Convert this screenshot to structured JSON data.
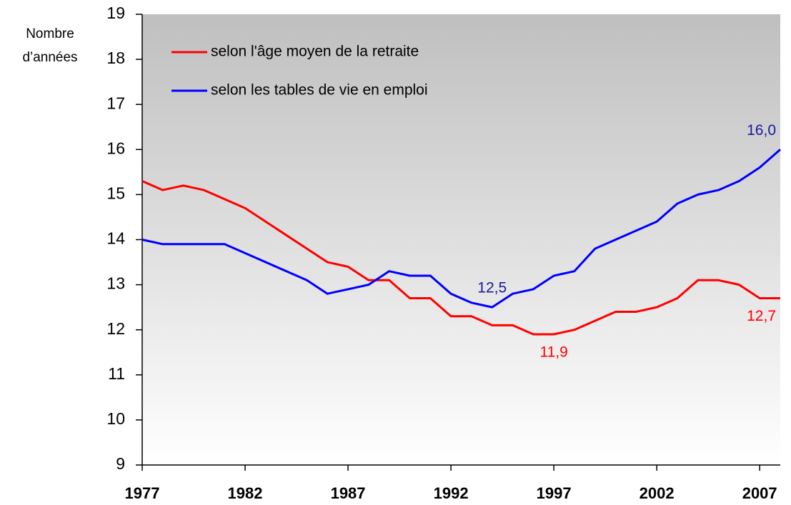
{
  "chart_data": {
    "type": "line",
    "y_label": [
      "Nombre",
      "d’années"
    ],
    "x": [
      1977,
      1978,
      1979,
      1980,
      1981,
      1982,
      1983,
      1984,
      1985,
      1986,
      1987,
      1988,
      1989,
      1990,
      1991,
      1992,
      1993,
      1994,
      1995,
      1996,
      1997,
      1998,
      1999,
      2000,
      2001,
      2002,
      2003,
      2004,
      2005,
      2006,
      2007,
      2008
    ],
    "xlim": [
      1977,
      2008
    ],
    "xticks": [
      1977,
      1982,
      1987,
      1992,
      1997,
      2002,
      2007
    ],
    "ylim": [
      9,
      19
    ],
    "yticks": [
      9,
      10,
      11,
      12,
      13,
      14,
      15,
      16,
      17,
      18,
      19
    ],
    "legend": "upper left",
    "series": [
      {
        "name": "selon l'âge moyen de la retraite",
        "color": "#ff0000",
        "values": [
          15.3,
          15.1,
          15.2,
          15.1,
          14.9,
          14.7,
          14.4,
          14.1,
          13.8,
          13.5,
          13.4,
          13.1,
          13.1,
          12.7,
          12.7,
          12.3,
          12.3,
          12.1,
          12.1,
          11.9,
          11.9,
          12.0,
          12.2,
          12.4,
          12.4,
          12.5,
          12.7,
          13.1,
          13.1,
          13.0,
          12.7,
          12.7
        ],
        "value_labels": [
          null,
          null,
          null,
          null,
          null,
          null,
          null,
          null,
          null,
          null,
          null,
          null,
          null,
          null,
          null,
          null,
          null,
          null,
          null,
          null,
          "11,9",
          null,
          null,
          null,
          null,
          null,
          null,
          null,
          null,
          null,
          null,
          "12,7"
        ]
      },
      {
        "name": "selon les tables de vie en emploi",
        "color": "#0000ff",
        "values": [
          14.0,
          13.9,
          13.9,
          13.9,
          13.9,
          13.7,
          13.5,
          13.3,
          13.1,
          12.8,
          12.9,
          13.0,
          13.3,
          13.2,
          13.2,
          12.8,
          12.6,
          12.5,
          12.8,
          12.9,
          13.2,
          13.3,
          13.8,
          14.0,
          14.2,
          14.4,
          14.8,
          15.0,
          15.1,
          15.3,
          15.6,
          16.0
        ],
        "value_labels": [
          null,
          null,
          null,
          null,
          null,
          null,
          null,
          null,
          null,
          null,
          null,
          null,
          null,
          null,
          null,
          null,
          null,
          "12,5",
          null,
          null,
          null,
          null,
          null,
          null,
          null,
          null,
          null,
          null,
          null,
          null,
          null,
          "16,0"
        ]
      }
    ]
  }
}
